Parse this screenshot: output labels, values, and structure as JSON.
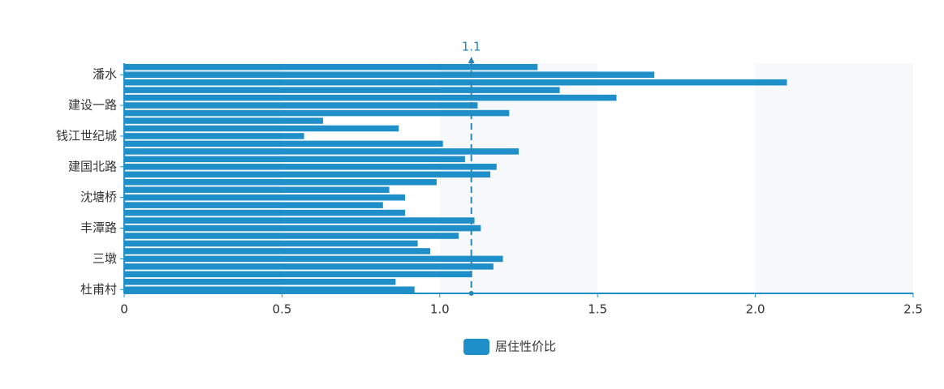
{
  "chart_data": {
    "type": "hbar",
    "categories": [
      null,
      "潘水",
      null,
      null,
      null,
      "建设一路",
      null,
      null,
      null,
      "钱江世纪城",
      null,
      null,
      null,
      "建国北路",
      null,
      null,
      null,
      "沈塘桥",
      null,
      null,
      null,
      "丰潭路",
      null,
      null,
      null,
      "三墩",
      null,
      null,
      null,
      "杜甫村"
    ],
    "series": [
      {
        "name": "居住性价比",
        "color": "#1e8fc8",
        "values": [
          1.31,
          1.68,
          2.1,
          1.38,
          1.56,
          1.12,
          1.22,
          0.63,
          0.87,
          0.57,
          1.01,
          1.25,
          1.08,
          1.18,
          1.16,
          0.99,
          0.84,
          0.89,
          0.82,
          0.89,
          1.11,
          1.13,
          1.06,
          0.93,
          0.97,
          1.2,
          1.17,
          1.1,
          0.86,
          0.92
        ]
      }
    ],
    "xlim": [
      0,
      2.5
    ],
    "xticks": [
      0,
      0.5,
      {
        "value": 1,
        "label": "1.0"
      },
      1.5,
      {
        "value": 2,
        "label": "2.0"
      },
      2.5
    ],
    "markline": 1.1
  }
}
